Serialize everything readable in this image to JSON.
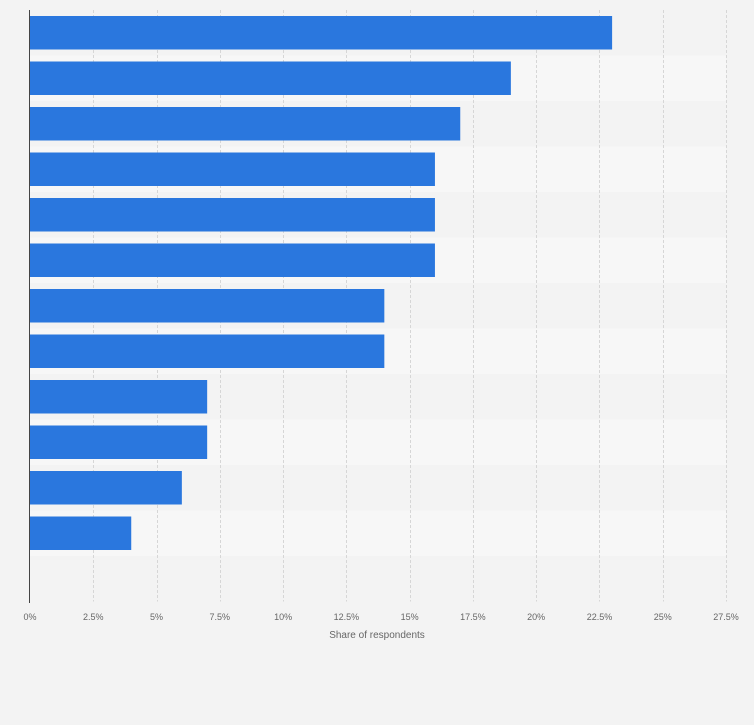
{
  "chart_data": {
    "type": "bar",
    "orientation": "horizontal",
    "values": [
      23,
      19,
      17,
      16,
      16,
      16,
      14,
      14,
      7,
      7,
      6,
      4
    ],
    "xlabel": "Share of respondents",
    "xlim": [
      0,
      27.5
    ],
    "x_ticks": [
      0,
      2.5,
      5,
      7.5,
      10,
      12.5,
      15,
      17.5,
      20,
      22.5,
      25,
      27.5
    ],
    "x_tick_labels": [
      "0%",
      "2.5%",
      "5%",
      "7.5%",
      "10%",
      "12.5%",
      "15%",
      "17.5%",
      "20%",
      "22.5%",
      "25%",
      "27.5%"
    ],
    "grid": true,
    "bar_color": "#2a77de",
    "band_colors": [
      "#f3f3f3",
      "#f7f7f7"
    ]
  }
}
